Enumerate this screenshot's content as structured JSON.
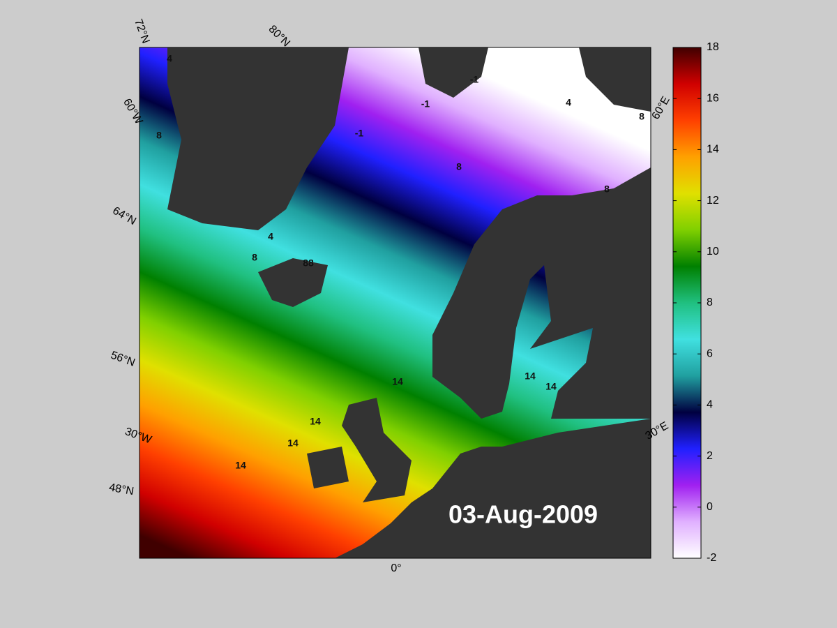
{
  "map": {
    "date": "03-Aug-2009",
    "graticule_labels": [
      "72°N",
      "80°N",
      "60°W",
      "64°N",
      "56°N",
      "30°W",
      "48°N",
      "0°",
      "30°E",
      "60°E"
    ],
    "contour_labels": [
      "4",
      "8",
      "4",
      "8",
      "88",
      "-1",
      "-1",
      "-1",
      "8",
      "4",
      "8",
      "8",
      "14",
      "14",
      "14",
      "14",
      "14",
      "14"
    ]
  },
  "colorbar": {
    "lim": [
      -2,
      18
    ],
    "ticks": [
      -2,
      0,
      2,
      4,
      6,
      8,
      10,
      12,
      14,
      16,
      18
    ],
    "colors": [
      "#ffffff",
      "#e0b0ff",
      "#a020f0",
      "#2020ff",
      "#000040",
      "#20a0a0",
      "#40e0e0",
      "#20c080",
      "#008000",
      "#80d000",
      "#e0e000",
      "#ffa000",
      "#ff4000",
      "#d00000",
      "#400000"
    ]
  }
}
